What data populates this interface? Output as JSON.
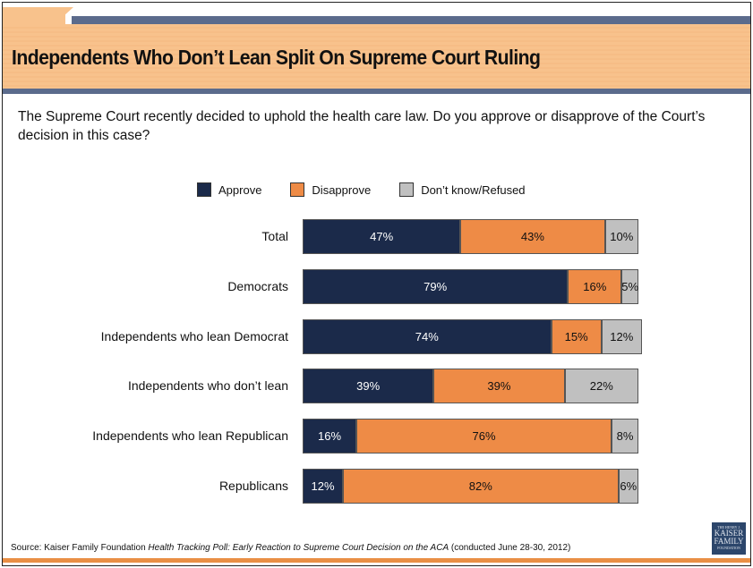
{
  "title": "Independents Who Don’t Lean Split On Supreme Court Ruling",
  "question": "The Supreme Court recently decided to uphold the health care law. Do you approve or disapprove of the Court’s decision in this case?",
  "source": {
    "prefix": "Source: Kaiser Family Foundation ",
    "italic": "Health Tracking Poll: Early Reaction to Supreme Court Decision on the ACA",
    "suffix": " (conducted June 28-30, 2012)"
  },
  "logo": {
    "top": "THE HENRY J.",
    "line1": "KAISER",
    "line2": "FAMILY",
    "bottom": "FOUNDATION"
  },
  "chart_data": {
    "type": "bar",
    "orientation": "horizontal-stacked-100",
    "legend_position": "top",
    "categories": [
      "Total",
      "Democrats",
      "Independents who lean Democrat",
      "Independents who don’t lean",
      "Independents who lean Republican",
      "Republicans"
    ],
    "series": [
      {
        "name": "Approve",
        "color": "#1b2a4a",
        "text_color": "#ffffff",
        "values": [
          47,
          79,
          74,
          39,
          16,
          12
        ]
      },
      {
        "name": "Disapprove",
        "color": "#ee8b46",
        "text_color": "#111111",
        "values": [
          43,
          16,
          15,
          39,
          76,
          82
        ]
      },
      {
        "name": "Don’t know/Refused",
        "color": "#c0c0c0",
        "text_color": "#111111",
        "values": [
          10,
          5,
          12,
          22,
          8,
          6
        ]
      }
    ]
  }
}
